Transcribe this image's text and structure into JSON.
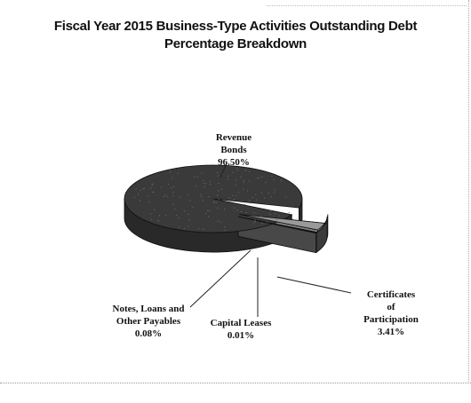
{
  "chart_data": {
    "type": "pie",
    "title_lines": [
      "Fiscal Year 2015 Business-Type Activities Outstanding Debt",
      "Percentage Breakdown"
    ],
    "slices": [
      {
        "label_lines": [
          "Revenue",
          "Bonds"
        ],
        "value_label": "96.50%",
        "value": 96.5,
        "color": "#3a3a3a"
      },
      {
        "label_lines": [
          "Certificates",
          "of",
          "Participation"
        ],
        "value_label": "3.41%",
        "value": 3.41,
        "color": "#9a9a9a"
      },
      {
        "label_lines": [
          "Capital Leases"
        ],
        "value_label": "0.01%",
        "value": 0.01,
        "color": "#222222"
      },
      {
        "label_lines": [
          "Notes, Loans and",
          "Other Payables"
        ],
        "value_label": "0.08%",
        "value": 0.08,
        "color": "#555555"
      }
    ],
    "style": "3d-pie-exploded"
  }
}
